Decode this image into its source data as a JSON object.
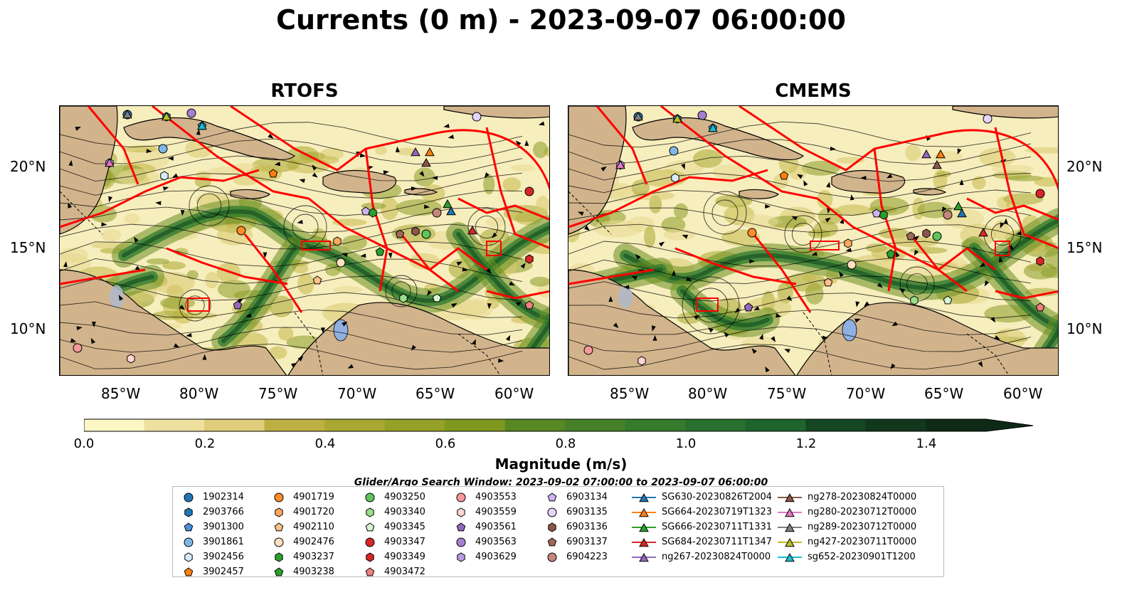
{
  "title": "Currents (0 m) - 2023-09-07 06:00:00",
  "panels": [
    {
      "title": "RTOFS"
    },
    {
      "title": "CMEMS"
    }
  ],
  "lat_labels": [
    "20°N",
    "15°N",
    "10°N"
  ],
  "lon_labels": [
    "85°W",
    "80°W",
    "75°W",
    "70°W",
    "65°W",
    "60°W"
  ],
  "colorbar": {
    "label": "Magnitude (m/s)",
    "ticks": [
      "0.0",
      "0.2",
      "0.4",
      "0.6",
      "0.8",
      "1.0",
      "1.2",
      "1.4"
    ],
    "range": [
      0,
      1.5
    ],
    "extend": "max",
    "colors": [
      "#fdf6c5",
      "#f0e0a0",
      "#e0cc7a",
      "#cfbb5a",
      "#bdb043",
      "#a8a832",
      "#94a028",
      "#7f9820",
      "#6a8e20",
      "#578824",
      "#468028",
      "#367a2c",
      "#29702e",
      "#1f642c",
      "#195528",
      "#154622",
      "#11371c",
      "#0e2a16"
    ]
  },
  "search_window": "Glider/Argo Search Window: 2023-09-02 07:00:00 to 2023-09-07 06:00:00",
  "legend": {
    "columns": [
      [
        {
          "label": "1902314",
          "marker": "circle",
          "color": "#1f77b4"
        },
        {
          "label": "2903766",
          "marker": "hexagon",
          "color": "#1f77b4"
        },
        {
          "label": "3901300",
          "marker": "pentagon",
          "color": "#4a90d9"
        },
        {
          "label": "3901861",
          "marker": "circle",
          "color": "#7fb8e6"
        },
        {
          "label": "3902456",
          "marker": "hexagon",
          "color": "#d6ecfa"
        },
        {
          "label": "3902457",
          "marker": "pentagon",
          "color": "#ff7f0e"
        }
      ],
      [
        {
          "label": "4901719",
          "marker": "circle",
          "color": "#ff8c28"
        },
        {
          "label": "4901720",
          "marker": "hexagon",
          "color": "#ffa860"
        },
        {
          "label": "4902110",
          "marker": "pentagon",
          "color": "#ffc08a"
        },
        {
          "label": "4902476",
          "marker": "circle",
          "color": "#ffe2c0"
        },
        {
          "label": "4903237",
          "marker": "hexagon",
          "color": "#2ca02c"
        },
        {
          "label": "4903238",
          "marker": "pentagon",
          "color": "#2ca02c"
        }
      ],
      [
        {
          "label": "4903250",
          "marker": "circle",
          "color": "#5ec45e"
        },
        {
          "label": "4903340",
          "marker": "hexagon",
          "color": "#98df8a"
        },
        {
          "label": "4903345",
          "marker": "pentagon",
          "color": "#d8f5cf"
        },
        {
          "label": "4903347",
          "marker": "circle",
          "color": "#d62728"
        },
        {
          "label": "4903349",
          "marker": "hexagon",
          "color": "#d62728"
        },
        {
          "label": "4903472",
          "marker": "pentagon",
          "color": "#f08080"
        }
      ],
      [
        {
          "label": "4903553",
          "marker": "circle",
          "color": "#f59a9a"
        },
        {
          "label": "4903559",
          "marker": "hexagon",
          "color": "#fdd6d6"
        },
        {
          "label": "4903561",
          "marker": "pentagon",
          "color": "#9467bd"
        },
        {
          "label": "4903563",
          "marker": "circle",
          "color": "#a57fd0"
        },
        {
          "label": "4903629",
          "marker": "hexagon",
          "color": "#b79ae0"
        }
      ],
      [
        {
          "label": "6903134",
          "marker": "pentagon",
          "color": "#cdb4f0"
        },
        {
          "label": "6903135",
          "marker": "circle",
          "color": "#e6d5fa"
        },
        {
          "label": "6903136",
          "marker": "hexagon",
          "color": "#8c564b"
        },
        {
          "label": "6903137",
          "marker": "pentagon",
          "color": "#a0685a"
        },
        {
          "label": "6904223",
          "marker": "circle",
          "color": "#c4877a"
        }
      ],
      [
        {
          "label": "SG630-20230826T2004",
          "marker": "triangle-line",
          "color": "#1f77b4"
        },
        {
          "label": "SG664-20230719T1323",
          "marker": "triangle-line",
          "color": "#ff7f0e"
        },
        {
          "label": "SG666-20230711T1331",
          "marker": "triangle-line",
          "color": "#2ca02c"
        },
        {
          "label": "SG684-20230711T1347",
          "marker": "triangle-line",
          "color": "#d62728"
        },
        {
          "label": "ng267-20230824T0000",
          "marker": "triangle-line",
          "color": "#9467bd"
        }
      ],
      [
        {
          "label": "ng278-20230824T0000",
          "marker": "triangle-line",
          "color": "#8c564b"
        },
        {
          "label": "ng280-20230712T0000",
          "marker": "triangle-line",
          "color": "#e377c2"
        },
        {
          "label": "ng289-20230712T0000",
          "marker": "triangle-line",
          "color": "#7f7f7f"
        },
        {
          "label": "ng427-20230711T0000",
          "marker": "triangle-line",
          "color": "#bcbd22"
        },
        {
          "label": "sg652-20230901T1200",
          "marker": "triangle-line",
          "color": "#17becf"
        }
      ]
    ]
  },
  "map_colors": {
    "land": "#d2b48c",
    "water_slow": "#f7eebd",
    "water_mid": "#9aa83a",
    "water_fast": "#2a6e2e",
    "routes": "#ff0000",
    "lakes": "#8fb0e0"
  }
}
